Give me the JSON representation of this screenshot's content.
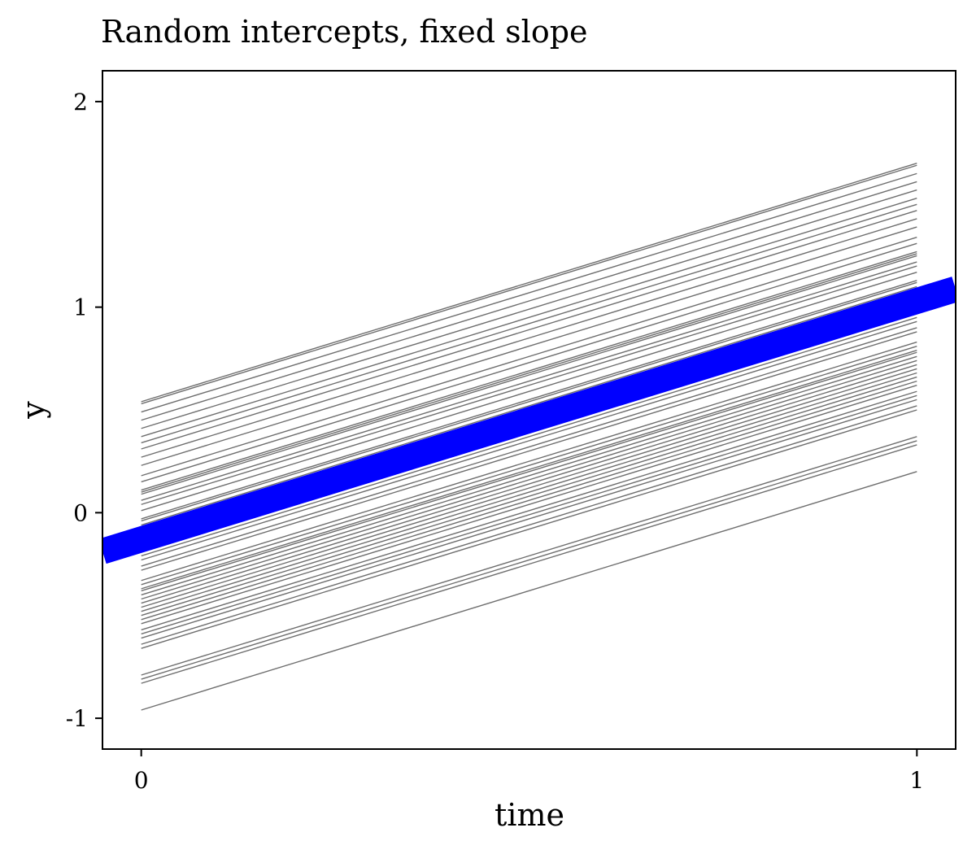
{
  "chart_data": {
    "type": "line",
    "title": "Random intercepts, fixed slope",
    "xlabel": "time",
    "ylabel": "y",
    "xlim": [
      -0.05,
      1.05
    ],
    "ylim": [
      -1.15,
      2.15
    ],
    "x_ticks": [
      0,
      1
    ],
    "x_tick_labels": [
      "0",
      "1"
    ],
    "y_ticks": [
      2,
      1,
      0,
      -1
    ],
    "y_tick_labels": [
      "2",
      "1",
      "0",
      "-1"
    ],
    "grid": false,
    "legend": "none",
    "slope": 1.16,
    "group_intercepts": [
      0.54,
      0.53,
      0.49,
      0.45,
      0.41,
      0.37,
      0.34,
      0.31,
      0.27,
      0.23,
      0.18,
      0.15,
      0.11,
      0.1,
      0.09,
      0.06,
      0.04,
      0.01,
      -0.03,
      -0.04,
      -0.06,
      -0.07,
      -0.09,
      -0.11,
      -0.12,
      -0.14,
      -0.15,
      -0.17,
      -0.19,
      -0.21,
      -0.23,
      -0.26,
      -0.28,
      -0.33,
      -0.35,
      -0.37,
      -0.38,
      -0.4,
      -0.42,
      -0.44,
      -0.46,
      -0.48,
      -0.5,
      -0.52,
      -0.54,
      -0.57,
      -0.59,
      -0.61,
      -0.64,
      -0.66,
      -0.79,
      -0.81,
      -0.83,
      -0.96
    ],
    "population_line": {
      "intercept": -0.13,
      "slope": 1.16,
      "x": [
        -0.05,
        1.05
      ]
    },
    "colors": {
      "group_lines": "#555555",
      "population_line": "#0000ff"
    }
  }
}
